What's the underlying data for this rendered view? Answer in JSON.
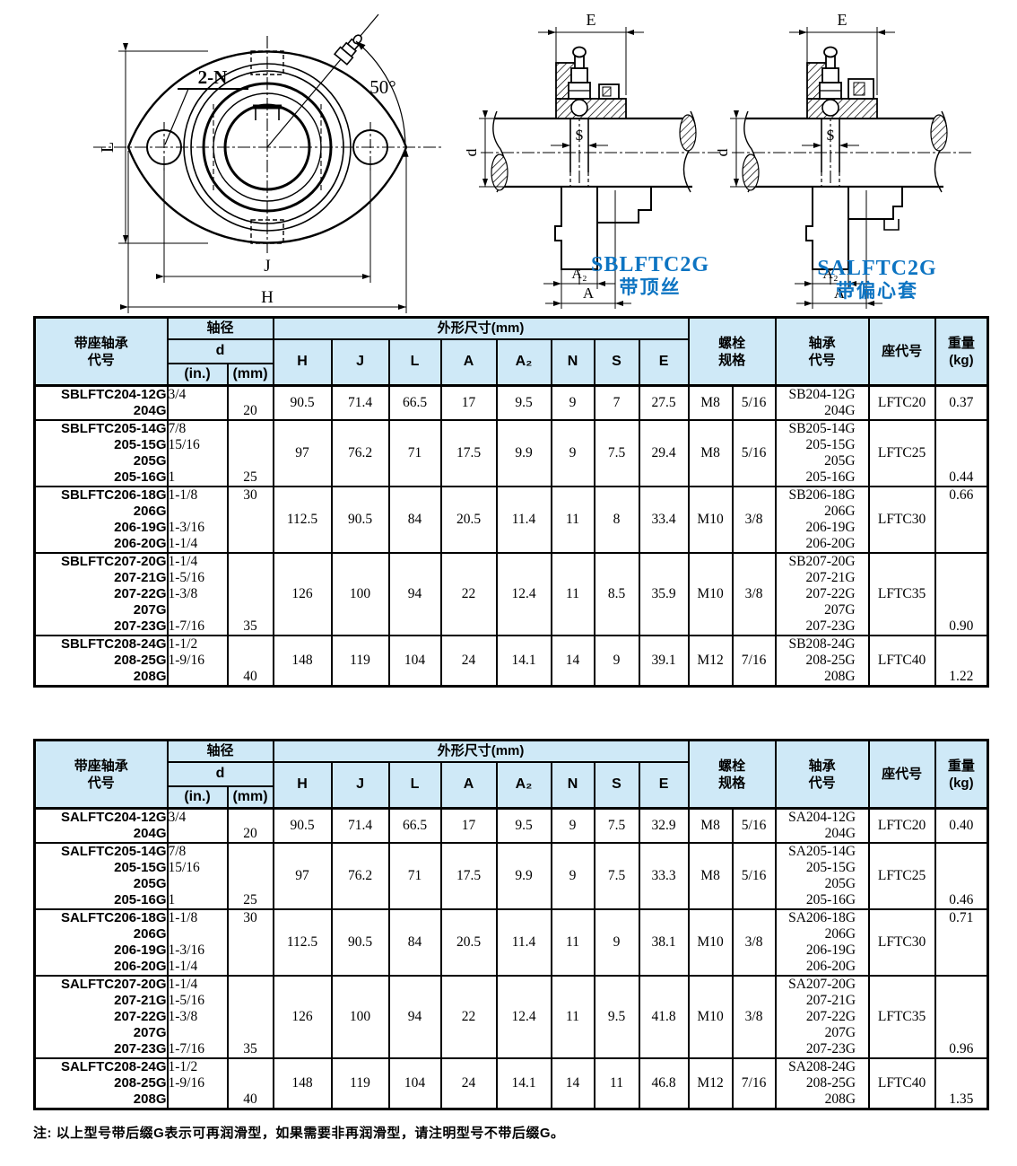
{
  "colors": {
    "header_bg": "#cfe9f7",
    "accent_blue": "#0d74c2"
  },
  "page": {
    "note": "注:  以上型号带后缀G表示可再润滑型，如果需要非再润滑型，请注明型号不带后缀G。"
  },
  "diagrams": {
    "front": {
      "label_2n": "2-N",
      "label_angle": "50°",
      "label_l": "L",
      "label_j": "J",
      "label_h": "H"
    },
    "side_sb": {
      "label_e": "E",
      "label_d": "d",
      "label_s": "S",
      "label_a2": "A₂",
      "label_a": "A",
      "caption_en": "SBLFTC2G",
      "caption_zh": "带顶丝"
    },
    "side_sa": {
      "label_e": "E",
      "label_d": "d",
      "label_s": "S",
      "label_a2": "A₂",
      "label_a": "A",
      "caption_en": "SALFTC2G",
      "caption_zh": "带偏心套"
    }
  },
  "tables": [
    {
      "header": {
        "code": "带座轴承\n代号",
        "shaft": "轴径",
        "d": "d",
        "in": "(in.)",
        "mm": "(mm)",
        "dims_title": "外形尺寸(mm)",
        "dims": [
          "H",
          "J",
          "L",
          "A",
          "A₂",
          "N",
          "S",
          "E"
        ],
        "bolt": "螺栓\n规格",
        "bearing": "轴承\n代号",
        "housing": "座代号",
        "weight": "重量\n(kg)"
      },
      "rows": [
        {
          "codes": "SBLFTC204-12G\n204G",
          "d_in": "3/4",
          "d_mm": "20",
          "mm_pos": "bottom",
          "dims": [
            "90.5",
            "71.4",
            "66.5",
            "17",
            "9.5",
            "9",
            "7",
            "27.5"
          ],
          "bolt_m": "M8",
          "bolt_in": "5/16",
          "bearing": "SB204-12G\n204G",
          "housing": "LFTC20",
          "kg": "0.37",
          "kg_pos": "mid"
        },
        {
          "codes": "SBLFTC205-14G\n205-15G\n205G\n205-16G",
          "d_in": "7/8\n15/16\n\n1",
          "d_mm": "25",
          "mm_pos": "low",
          "dims": [
            "97",
            "76.2",
            "71",
            "17.5",
            "9.9",
            "9",
            "7.5",
            "29.4"
          ],
          "bolt_m": "M8",
          "bolt_in": "5/16",
          "bearing": "SB205-14G\n205-15G\n205G\n205-16G",
          "housing": "LFTC25",
          "kg": "0.44",
          "kg_pos": "low"
        },
        {
          "codes": "SBLFTC206-18G\n206G\n206-19G\n206-20G",
          "d_in": "1-1/8\n\n1-3/16\n1-1/4",
          "d_mm": "30",
          "mm_pos": "top",
          "dims": [
            "112.5",
            "90.5",
            "84",
            "20.5",
            "11.4",
            "11",
            "8",
            "33.4"
          ],
          "bolt_m": "M10",
          "bolt_in": "3/8",
          "bearing": "SB206-18G\n206G\n206-19G\n206-20G",
          "housing": "LFTC30",
          "kg": "0.66",
          "kg_pos": "top"
        },
        {
          "codes": "SBLFTC207-20G\n207-21G\n207-22G\n207G\n207-23G",
          "d_in": "1-1/4\n1-5/16\n1-3/8\n\n1-7/16",
          "d_mm": "35",
          "mm_pos": "low",
          "dims": [
            "126",
            "100",
            "94",
            "22",
            "12.4",
            "11",
            "8.5",
            "35.9"
          ],
          "bolt_m": "M10",
          "bolt_in": "3/8",
          "bearing": "SB207-20G\n207-21G\n207-22G\n207G\n207-23G",
          "housing": "LFTC35",
          "kg": "0.90",
          "kg_pos": "low"
        },
        {
          "codes": "SBLFTC208-24G\n208-25G\n208G",
          "d_in": "1-1/2\n1-9/16",
          "d_mm": "40",
          "mm_pos": "bottom",
          "dims": [
            "148",
            "119",
            "104",
            "24",
            "14.1",
            "14",
            "9",
            "39.1"
          ],
          "bolt_m": "M12",
          "bolt_in": "7/16",
          "bearing": "SB208-24G\n208-25G\n208G",
          "housing": "LFTC40",
          "kg": "1.22",
          "kg_pos": "bottom"
        }
      ]
    },
    {
      "header": {
        "code": "带座轴承\n代号",
        "shaft": "轴径",
        "d": "d",
        "in": "(in.)",
        "mm": "(mm)",
        "dims_title": "外形尺寸(mm)",
        "dims": [
          "H",
          "J",
          "L",
          "A",
          "A₂",
          "N",
          "S",
          "E"
        ],
        "bolt": "螺栓\n规格",
        "bearing": "轴承\n代号",
        "housing": "座代号",
        "weight": "重量\n(kg)"
      },
      "rows": [
        {
          "codes": "SALFTC204-12G\n204G",
          "d_in": "3/4",
          "d_mm": "20",
          "mm_pos": "bottom",
          "dims": [
            "90.5",
            "71.4",
            "66.5",
            "17",
            "9.5",
            "9",
            "7.5",
            "32.9"
          ],
          "bolt_m": "M8",
          "bolt_in": "5/16",
          "bearing": "SA204-12G\n204G",
          "housing": "LFTC20",
          "kg": "0.40",
          "kg_pos": "mid"
        },
        {
          "codes": "SALFTC205-14G\n205-15G\n205G\n205-16G",
          "d_in": "7/8\n15/16\n\n1",
          "d_mm": "25",
          "mm_pos": "low",
          "dims": [
            "97",
            "76.2",
            "71",
            "17.5",
            "9.9",
            "9",
            "7.5",
            "33.3"
          ],
          "bolt_m": "M8",
          "bolt_in": "5/16",
          "bearing": "SA205-14G\n205-15G\n205G\n205-16G",
          "housing": "LFTC25",
          "kg": "0.46",
          "kg_pos": "low"
        },
        {
          "codes": "SALFTC206-18G\n206G\n206-19G\n206-20G",
          "d_in": "1-1/8\n\n1-3/16\n1-1/4",
          "d_mm": "30",
          "mm_pos": "top",
          "dims": [
            "112.5",
            "90.5",
            "84",
            "20.5",
            "11.4",
            "11",
            "9",
            "38.1"
          ],
          "bolt_m": "M10",
          "bolt_in": "3/8",
          "bearing": "SA206-18G\n206G\n206-19G\n206-20G",
          "housing": "LFTC30",
          "kg": "0.71",
          "kg_pos": "top"
        },
        {
          "codes": "SALFTC207-20G\n207-21G\n207-22G\n207G\n207-23G",
          "d_in": "1-1/4\n1-5/16\n1-3/8\n\n1-7/16",
          "d_mm": "35",
          "mm_pos": "low",
          "dims": [
            "126",
            "100",
            "94",
            "22",
            "12.4",
            "11",
            "9.5",
            "41.8"
          ],
          "bolt_m": "M10",
          "bolt_in": "3/8",
          "bearing": "SA207-20G\n207-21G\n207-22G\n207G\n207-23G",
          "housing": "LFTC35",
          "kg": "0.96",
          "kg_pos": "low"
        },
        {
          "codes": "SALFTC208-24G\n208-25G\n208G",
          "d_in": "1-1/2\n1-9/16",
          "d_mm": "40",
          "mm_pos": "bottom",
          "dims": [
            "148",
            "119",
            "104",
            "24",
            "14.1",
            "14",
            "11",
            "46.8"
          ],
          "bolt_m": "M12",
          "bolt_in": "7/16",
          "bearing": "SA208-24G\n208-25G\n208G",
          "housing": "LFTC40",
          "kg": "1.35",
          "kg_pos": "bottom"
        }
      ]
    }
  ]
}
